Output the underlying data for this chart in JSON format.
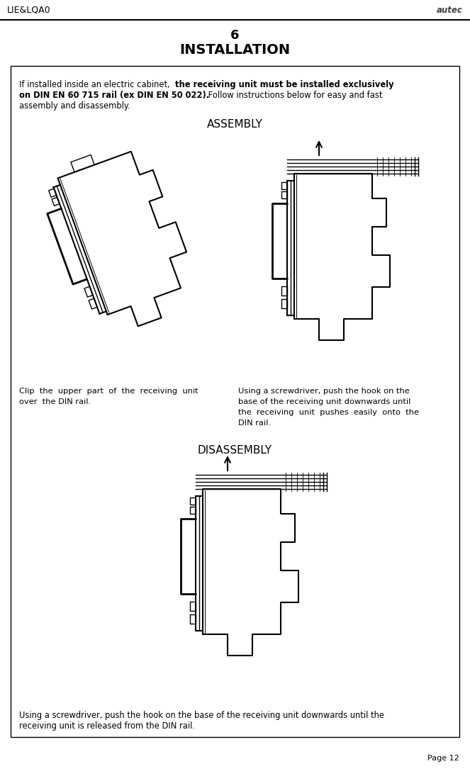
{
  "page_title_number": "6",
  "page_title": "INSTALLATION",
  "header_left": "LIE&LQA0",
  "page_number": "Page 12",
  "assembly_label": "ASSEMBLY",
  "disassembly_label": "DISASSEMBLY",
  "caption_left": "Clip  the  upper  part  of  the  receiving  unit\nover  the DIN rail.",
  "caption_right_line1": "Using a screwdriver, push the hook on the",
  "caption_right_line2": "base of the receiving unit downwards until",
  "caption_right_line3": "the  receiving  unit  pushes  easily  onto  the",
  "caption_right_line4": "DIN rail.",
  "caption_bottom_line1": "Using a screwdriver, push the hook on the base of the receiving unit downwards until the",
  "caption_bottom_line2": "receiving unit is released from the DIN rail.",
  "bg_color": "#ffffff",
  "text_color": "#000000",
  "fig_width": 6.63,
  "fig_height": 10.95
}
